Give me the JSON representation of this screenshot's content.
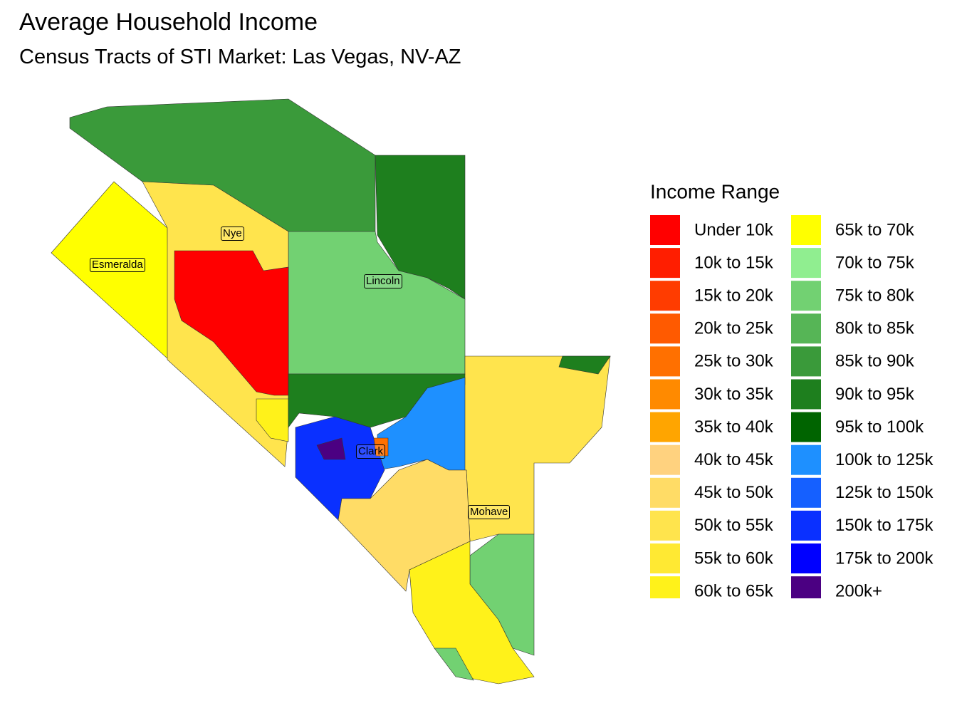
{
  "header": {
    "title": "Average Household Income",
    "subtitle": "Census Tracts of STI Market: Las Vegas, NV-AZ"
  },
  "legend": {
    "title": "Income Range",
    "items": [
      {
        "label": "Under 10k",
        "color": "#ff0000"
      },
      {
        "label": "10k to 15k",
        "color": "#ff1e00"
      },
      {
        "label": "15k to 20k",
        "color": "#ff3c00"
      },
      {
        "label": "20k to 25k",
        "color": "#ff5a00"
      },
      {
        "label": "25k to 30k",
        "color": "#ff7000"
      },
      {
        "label": "30k to 35k",
        "color": "#ff8a00"
      },
      {
        "label": "35k to 40k",
        "color": "#ffa500"
      },
      {
        "label": "40k to 45k",
        "color": "#ffd27f"
      },
      {
        "label": "45k to 50k",
        "color": "#ffdc66"
      },
      {
        "label": "50k to 55k",
        "color": "#ffe44d"
      },
      {
        "label": "55k to 60k",
        "color": "#ffe933"
      },
      {
        "label": "60k to 65k",
        "color": "#fff21a"
      },
      {
        "label": "65k to 70k",
        "color": "#ffff00"
      },
      {
        "label": "70k to 75k",
        "color": "#90ee90"
      },
      {
        "label": "75k to 80k",
        "color": "#72d172"
      },
      {
        "label": "80k to 85k",
        "color": "#56b556"
      },
      {
        "label": "85k to 90k",
        "color": "#3a9a3a"
      },
      {
        "label": "90k to 95k",
        "color": "#1e7f1e"
      },
      {
        "label": "95k to 100k",
        "color": "#006400"
      },
      {
        "label": "100k to 125k",
        "color": "#1e90ff"
      },
      {
        "label": "125k to 150k",
        "color": "#1560ff"
      },
      {
        "label": "150k to 175k",
        "color": "#0a30ff"
      },
      {
        "label": "175k to 200k",
        "color": "#0000ff"
      },
      {
        "label": "200k+",
        "color": "#4b0082"
      }
    ]
  },
  "map": {
    "labels": [
      "Esmeralda",
      "Nye",
      "Lincoln",
      "Clark",
      "Mohave"
    ]
  }
}
